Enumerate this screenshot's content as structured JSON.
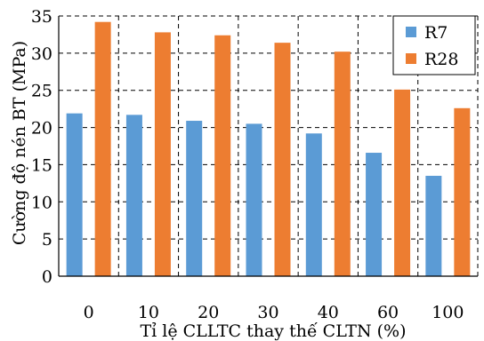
{
  "chart_data": {
    "type": "bar",
    "xlabel": "Tỉ lệ CLLTC thay thế CLTN (%)",
    "ylabel": "Cường độ nén BT (MPa)",
    "categories": [
      "0",
      "10",
      "20",
      "30",
      "40",
      "60",
      "100"
    ],
    "ylim": [
      0,
      35
    ],
    "yticks": [
      "0",
      "5",
      "10",
      "15",
      "20",
      "25",
      "30",
      "35"
    ],
    "grid": "dashed vertical and horizontal",
    "legend_position": "top-right",
    "series": [
      {
        "name": "R7",
        "color": "#5B9BD5",
        "values": [
          21.9,
          21.7,
          20.9,
          20.5,
          19.2,
          16.6,
          13.5
        ]
      },
      {
        "name": "R28",
        "color": "#ED7D31",
        "values": [
          34.2,
          32.8,
          32.4,
          31.4,
          30.2,
          25.1,
          22.6
        ]
      }
    ]
  }
}
